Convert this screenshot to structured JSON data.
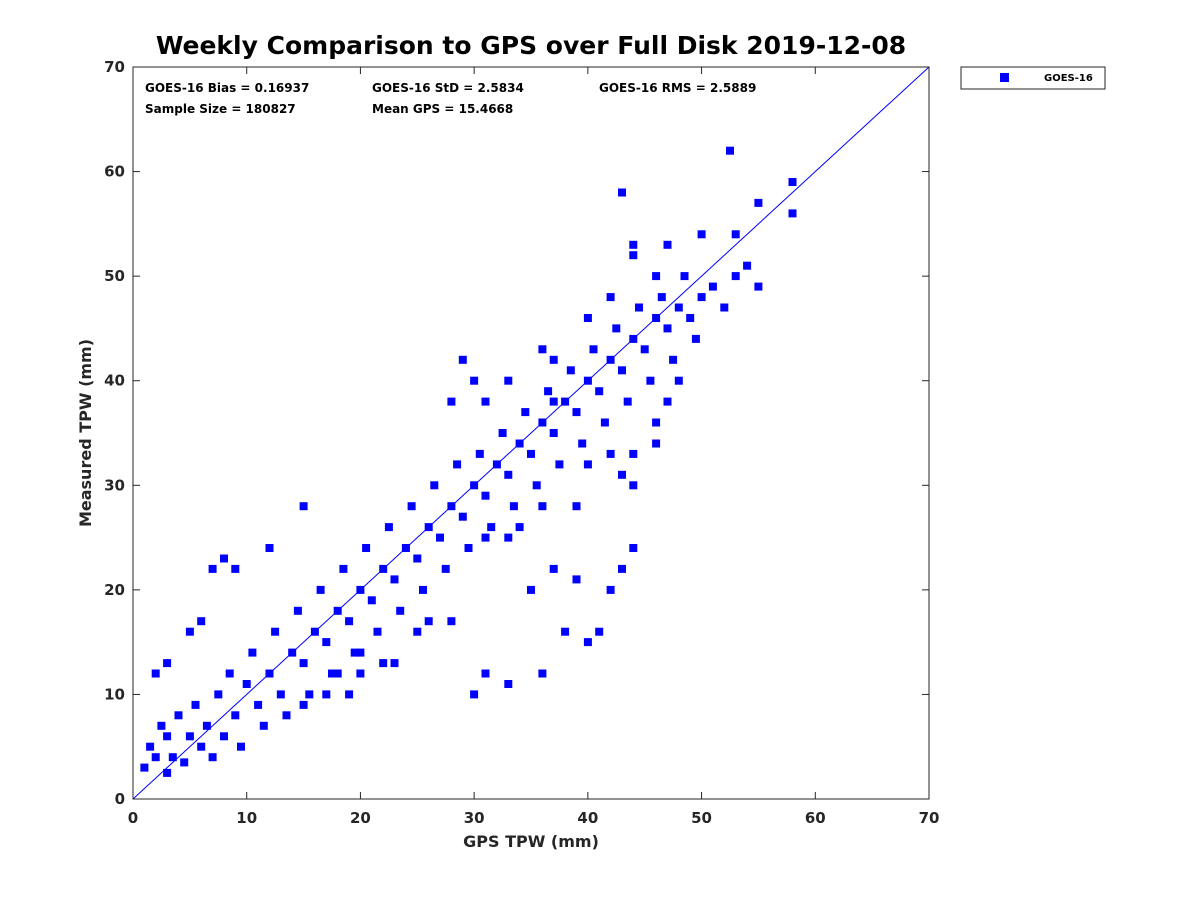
{
  "chart_data": {
    "type": "scatter",
    "title": "Weekly Comparison to GPS over Full Disk 2019-12-08",
    "xlabel": "GPS TPW (mm)",
    "ylabel": "Measured TPW (mm)",
    "xlim": [
      0,
      70
    ],
    "ylim": [
      0,
      70
    ],
    "x_ticks": [
      "0",
      "10",
      "20",
      "30",
      "40",
      "50",
      "60",
      "70"
    ],
    "y_ticks": [
      "0",
      "10",
      "20",
      "30",
      "40",
      "50",
      "60",
      "70"
    ],
    "grid": false,
    "legend_position": "outside-top-right",
    "legend": [
      "GOES-16"
    ],
    "reference_line": {
      "from": [
        0,
        0
      ],
      "to": [
        70,
        70
      ],
      "color": "#0000ff"
    },
    "stats": {
      "bias": "GOES-16 Bias = 0.16937",
      "std": "GOES-16 StD = 2.5834",
      "rms": "GOES-16 RMS = 2.5889",
      "sample_size": "Sample Size = 180827",
      "mean_gps": "Mean GPS = 15.4668"
    },
    "series": [
      {
        "name": "GOES-16",
        "color": "#0000ff",
        "marker": "square",
        "points": [
          [
            1,
            3
          ],
          [
            1.5,
            5
          ],
          [
            2,
            4
          ],
          [
            2.5,
            7
          ],
          [
            3,
            2.5
          ],
          [
            3,
            6
          ],
          [
            3.5,
            4
          ],
          [
            4,
            8
          ],
          [
            4.5,
            3.5
          ],
          [
            5,
            6
          ],
          [
            5.5,
            9
          ],
          [
            6,
            5
          ],
          [
            6.5,
            7
          ],
          [
            7,
            4
          ],
          [
            7.5,
            10
          ],
          [
            8,
            6
          ],
          [
            8.5,
            12
          ],
          [
            9,
            8
          ],
          [
            9.5,
            5
          ],
          [
            10,
            11
          ],
          [
            10.5,
            14
          ],
          [
            11,
            9
          ],
          [
            11.5,
            7
          ],
          [
            12,
            12
          ],
          [
            12.5,
            16
          ],
          [
            13,
            10
          ],
          [
            13.5,
            8
          ],
          [
            14,
            14
          ],
          [
            14.5,
            18
          ],
          [
            15,
            13
          ],
          [
            15.5,
            10
          ],
          [
            16,
            16
          ],
          [
            16.5,
            20
          ],
          [
            17,
            15
          ],
          [
            17.5,
            12
          ],
          [
            18,
            18
          ],
          [
            18.5,
            22
          ],
          [
            19,
            17
          ],
          [
            19.5,
            14
          ],
          [
            20,
            20
          ],
          [
            20.5,
            24
          ],
          [
            21,
            19
          ],
          [
            21.5,
            16
          ],
          [
            22,
            22
          ],
          [
            22.5,
            26
          ],
          [
            23,
            21
          ],
          [
            23.5,
            18
          ],
          [
            24,
            24
          ],
          [
            24.5,
            28
          ],
          [
            25,
            23
          ],
          [
            25.5,
            20
          ],
          [
            26,
            26
          ],
          [
            26.5,
            30
          ],
          [
            27,
            25
          ],
          [
            27.5,
            22
          ],
          [
            28,
            28
          ],
          [
            28.5,
            32
          ],
          [
            29,
            27
          ],
          [
            29.5,
            24
          ],
          [
            30,
            30
          ],
          [
            30.5,
            33
          ],
          [
            31,
            29
          ],
          [
            31.5,
            26
          ],
          [
            32,
            32
          ],
          [
            32.5,
            35
          ],
          [
            33,
            31
          ],
          [
            33.5,
            28
          ],
          [
            34,
            34
          ],
          [
            34.5,
            37
          ],
          [
            35,
            33
          ],
          [
            35.5,
            30
          ],
          [
            36,
            36
          ],
          [
            36.5,
            39
          ],
          [
            37,
            35
          ],
          [
            37.5,
            32
          ],
          [
            38,
            38
          ],
          [
            38.5,
            41
          ],
          [
            39,
            37
          ],
          [
            39.5,
            34
          ],
          [
            40,
            40
          ],
          [
            40.5,
            43
          ],
          [
            41,
            39
          ],
          [
            41.5,
            36
          ],
          [
            42,
            42
          ],
          [
            42.5,
            45
          ],
          [
            43,
            41
          ],
          [
            43.5,
            38
          ],
          [
            44,
            44
          ],
          [
            44.5,
            47
          ],
          [
            45,
            43
          ],
          [
            45.5,
            40
          ],
          [
            46,
            46
          ],
          [
            46.5,
            48
          ],
          [
            47,
            45
          ],
          [
            47.5,
            42
          ],
          [
            48,
            47
          ],
          [
            48.5,
            50
          ],
          [
            49,
            46
          ],
          [
            49.5,
            44
          ],
          [
            50,
            48
          ],
          [
            51,
            49
          ],
          [
            52,
            47
          ],
          [
            53,
            50
          ],
          [
            54,
            51
          ],
          [
            55,
            49
          ],
          [
            52.5,
            62
          ],
          [
            43,
            58
          ],
          [
            58,
            59
          ],
          [
            58,
            56
          ],
          [
            55,
            57
          ],
          [
            47,
            53
          ],
          [
            50,
            54
          ],
          [
            44,
            53
          ],
          [
            53,
            54
          ],
          [
            3,
            13
          ],
          [
            7,
            22
          ],
          [
            8,
            23
          ],
          [
            9,
            22
          ],
          [
            12,
            24
          ],
          [
            15,
            28
          ],
          [
            5,
            16
          ],
          [
            6,
            17
          ],
          [
            2,
            12
          ],
          [
            30,
            10
          ],
          [
            31,
            12
          ],
          [
            33,
            11
          ],
          [
            36,
            12
          ],
          [
            38,
            16
          ],
          [
            40,
            15
          ],
          [
            41,
            16
          ],
          [
            42,
            20
          ],
          [
            43,
            22
          ],
          [
            44,
            24
          ],
          [
            39,
            21
          ],
          [
            37,
            22
          ],
          [
            35,
            20
          ],
          [
            31,
            25
          ],
          [
            28,
            17
          ],
          [
            25,
            16
          ],
          [
            22,
            13
          ],
          [
            26,
            17
          ],
          [
            23,
            13
          ],
          [
            20,
            12
          ],
          [
            18,
            12
          ],
          [
            19,
            10
          ],
          [
            20,
            14
          ],
          [
            17,
            10
          ],
          [
            15,
            9
          ],
          [
            46,
            36
          ],
          [
            47,
            38
          ],
          [
            48,
            40
          ],
          [
            46,
            34
          ],
          [
            44,
            33
          ],
          [
            40,
            32
          ],
          [
            39,
            28
          ],
          [
            36,
            28
          ],
          [
            34,
            26
          ],
          [
            33,
            25
          ],
          [
            42,
            33
          ],
          [
            43,
            31
          ],
          [
            44,
            30
          ],
          [
            29,
            42
          ],
          [
            30,
            40
          ],
          [
            33,
            40
          ],
          [
            28,
            38
          ],
          [
            36,
            43
          ],
          [
            37,
            42
          ],
          [
            40,
            46
          ],
          [
            42,
            48
          ],
          [
            46,
            50
          ],
          [
            44,
            52
          ],
          [
            37,
            38
          ],
          [
            31,
            38
          ]
        ]
      }
    ]
  }
}
